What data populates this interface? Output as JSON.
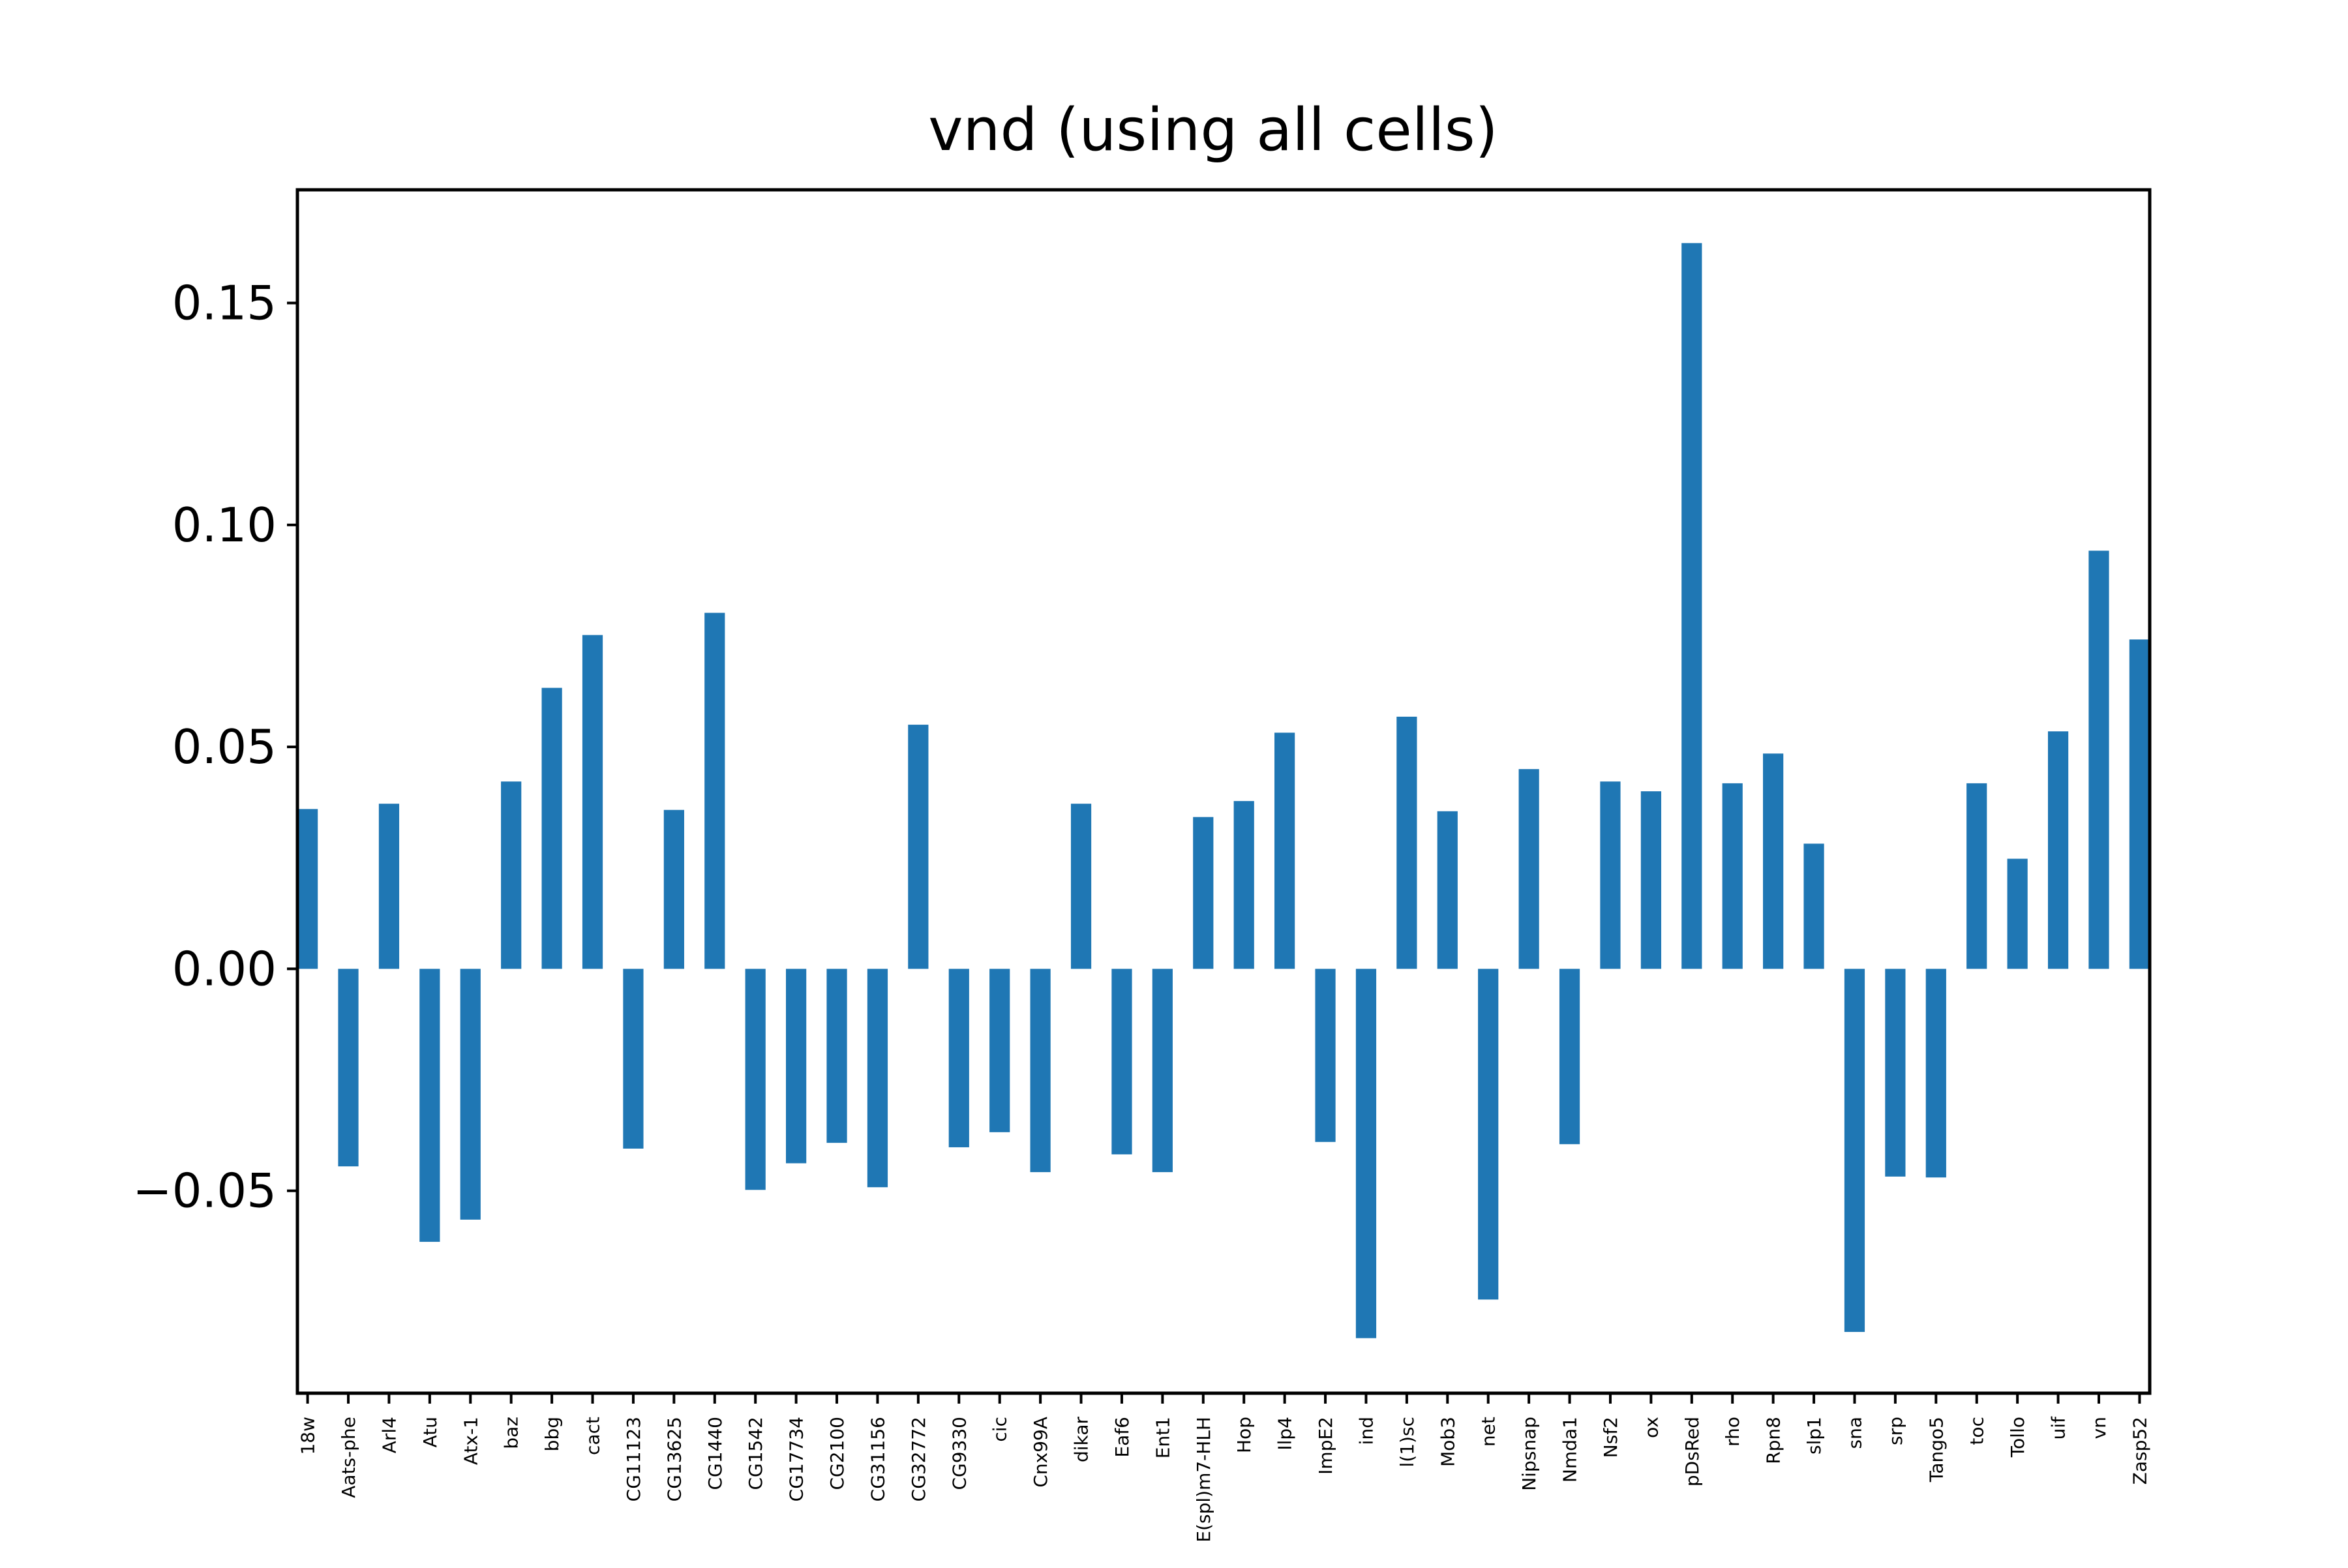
{
  "chart_data": {
    "type": "bar",
    "title": "vnd (using all cells)",
    "xlabel": "",
    "ylabel": "",
    "ylim": [
      -0.0956,
      0.1755
    ],
    "yticks": [
      -0.05,
      0.0,
      0.05,
      0.1,
      0.15
    ],
    "ytick_labels": [
      "−0.05",
      "0.00",
      "0.05",
      "0.10",
      "0.15"
    ],
    "grid": false,
    "legend": "none",
    "bar_color": "#1f77b4",
    "categories": [
      "18w",
      "Aats-phe",
      "Arl4",
      "Atu",
      "Atx-1",
      "baz",
      "bbg",
      "cact",
      "CG11123",
      "CG13625",
      "CG1440",
      "CG1542",
      "CG17734",
      "CG2100",
      "CG31156",
      "CG32772",
      "CG9330",
      "cic",
      "Cnx99A",
      "dikar",
      "Eaf6",
      "Ent1",
      "E(spl)m7-HLH",
      "Hop",
      "Ilp4",
      "ImpE2",
      "ind",
      "l(1)sc",
      "Mob3",
      "net",
      "Nipsnap",
      "Nmda1",
      "Nsf2",
      "ox",
      "pDsRed",
      "rho",
      "Rpn8",
      "slp1",
      "sna",
      "srp",
      "Tango5",
      "toc",
      "Tollo",
      "uif",
      "vn",
      "Zasp52"
    ],
    "values": [
      0.036,
      -0.0445,
      0.0372,
      -0.0615,
      -0.0565,
      0.0422,
      0.0633,
      0.0752,
      -0.0405,
      0.0358,
      0.0802,
      -0.0498,
      -0.0438,
      -0.0392,
      -0.0492,
      0.055,
      -0.0402,
      -0.0368,
      -0.0458,
      0.0372,
      -0.0418,
      -0.0458,
      0.0342,
      0.0378,
      0.0532,
      -0.039,
      -0.0832,
      0.0568,
      0.0355,
      -0.0745,
      0.045,
      -0.0395,
      0.0422,
      0.04,
      0.1635,
      0.0418,
      0.0485,
      0.0282,
      -0.0818,
      -0.0468,
      -0.047,
      0.0418,
      0.0248,
      0.0535,
      0.0942,
      0.0742
    ]
  }
}
